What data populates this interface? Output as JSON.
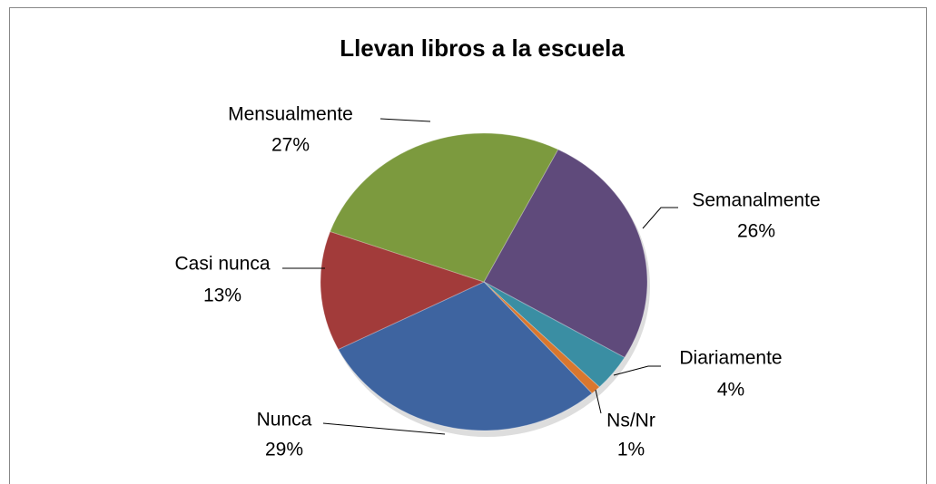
{
  "chart_data": {
    "type": "pie",
    "title": "Llevan libros a la escuela",
    "categories": [
      "Semanalmente",
      "Diariamente",
      "Ns/Nr",
      "Nunca",
      "Casi nunca",
      "Mensualmente"
    ],
    "values": [
      26,
      4,
      1,
      29,
      13,
      27
    ],
    "value_labels": [
      "26%",
      "4%",
      "1%",
      "29%",
      "13%",
      "27%"
    ],
    "colors": [
      "#5f4a7b",
      "#3a8ea3",
      "#d9772e",
      "#3e64a0",
      "#a23b3a",
      "#7c9a3e"
    ]
  }
}
